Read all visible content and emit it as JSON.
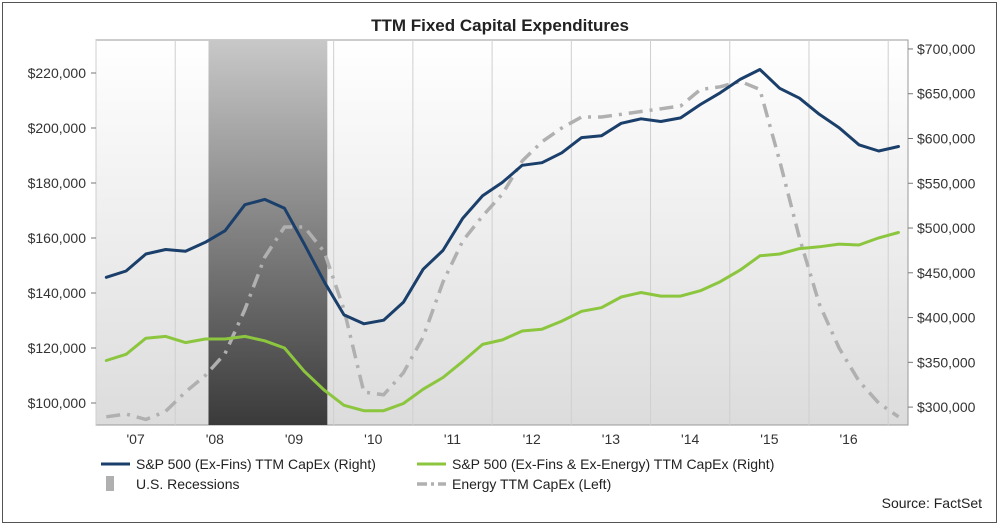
{
  "chart_data": {
    "type": "line",
    "title": "TTM Fixed Capital Expenditures",
    "source": "Source: FactSet",
    "x_tick_labels": [
      "'07",
      "'08",
      "'09",
      "'10",
      "'11",
      "'12",
      "'13",
      "'14",
      "'15",
      "'16"
    ],
    "x_tick_years": [
      2007,
      2008,
      2009,
      2010,
      2011,
      2012,
      2013,
      2014,
      2015,
      2016
    ],
    "xlim": [
      2006.5,
      2016.75
    ],
    "left_axis": {
      "ylim": [
        92000,
        232000
      ],
      "ticks": [
        100000,
        120000,
        140000,
        160000,
        180000,
        200000,
        220000
      ],
      "tick_labels": [
        "$100,000",
        "$120,000",
        "$140,000",
        "$160,000",
        "$180,000",
        "$200,000",
        "$220,000"
      ]
    },
    "right_axis": {
      "ylim": [
        280000,
        710000
      ],
      "ticks": [
        300000,
        350000,
        400000,
        450000,
        500000,
        550000,
        600000,
        650000,
        700000
      ],
      "tick_labels": [
        "$300,000",
        "$350,000",
        "$400,000",
        "$450,000",
        "$500,000",
        "$550,000",
        "$600,000",
        "$650,000",
        "$700,000"
      ]
    },
    "recession": {
      "start": 2007.92,
      "end": 2009.42,
      "label": "U.S. Recessions"
    },
    "x": [
      2006.63,
      2006.88,
      2007.13,
      2007.38,
      2007.63,
      2007.88,
      2008.13,
      2008.38,
      2008.63,
      2008.88,
      2009.13,
      2009.38,
      2009.63,
      2009.88,
      2010.13,
      2010.38,
      2010.63,
      2010.88,
      2011.13,
      2011.38,
      2011.63,
      2011.88,
      2012.13,
      2012.38,
      2012.63,
      2012.88,
      2013.13,
      2013.38,
      2013.63,
      2013.88,
      2014.13,
      2014.38,
      2014.63,
      2014.88,
      2015.13,
      2015.38,
      2015.63,
      2015.88,
      2016.13,
      2016.38,
      2016.63
    ],
    "series": [
      {
        "name": "S&P 500 (Ex-Fins) TTM CapEx (Right)",
        "axis": "right",
        "color": "#1b3f6b",
        "style": "solid",
        "values": [
          445000,
          452000,
          471000,
          476000,
          474000,
          484000,
          497000,
          526000,
          532000,
          522000,
          482000,
          440000,
          403000,
          393000,
          397000,
          417000,
          454000,
          475000,
          511000,
          536000,
          551000,
          570000,
          573000,
          584000,
          601000,
          603000,
          617000,
          622000,
          619000,
          623000,
          638000,
          651000,
          666000,
          677000,
          656000,
          645000,
          627000,
          612000,
          593000,
          586000,
          591000
        ]
      },
      {
        "name": "S&P 500 (Ex-Fins & Ex-Energy) TTM CapEx (Right)",
        "axis": "right",
        "color": "#8cc63f",
        "style": "solid",
        "values": [
          352000,
          359000,
          377000,
          379000,
          372000,
          376000,
          376000,
          379000,
          374000,
          366000,
          340000,
          319000,
          302000,
          296000,
          296000,
          304000,
          320000,
          333000,
          351000,
          370000,
          375000,
          385000,
          387000,
          396000,
          407000,
          411000,
          423000,
          428000,
          424000,
          424000,
          430000,
          440000,
          453000,
          469000,
          471000,
          477000,
          479000,
          482000,
          481000,
          489000,
          495000
        ]
      },
      {
        "name": "Energy TTM CapEx (Left)",
        "axis": "left",
        "color": "#b0b0b0",
        "style": "dashdot",
        "values": [
          95000,
          96000,
          94000,
          97000,
          104000,
          110000,
          118000,
          134000,
          153000,
          164000,
          164000,
          155000,
          134000,
          104000,
          103000,
          111000,
          124000,
          144000,
          159000,
          168000,
          176000,
          188000,
          195000,
          200000,
          204000,
          204000,
          205000,
          206000,
          207000,
          208000,
          214000,
          215000,
          217000,
          214000,
          188000,
          160000,
          136000,
          120000,
          108000,
          100000,
          95000
        ]
      }
    ],
    "legend": [
      {
        "label": "S&P 500 (Ex-Fins) TTM CapEx (Right)",
        "color": "#1b3f6b",
        "marker": "line"
      },
      {
        "label": "S&P 500 (Ex-Fins & Ex-Energy) TTM CapEx (Right)",
        "color": "#8cc63f",
        "marker": "line"
      },
      {
        "label": "U.S. Recessions",
        "color": "#b0b0b0",
        "marker": "bar"
      },
      {
        "label": "Energy TTM CapEx (Left)",
        "color": "#b0b0b0",
        "marker": "dashdot"
      }
    ]
  }
}
